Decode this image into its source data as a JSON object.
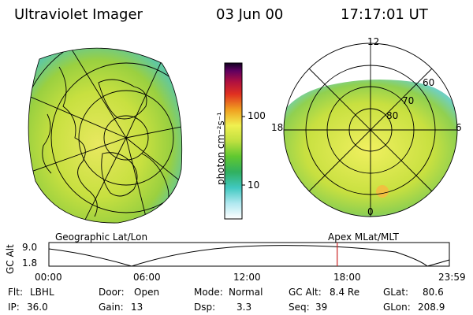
{
  "header": {
    "title": "Ultraviolet Imager",
    "date": "03 Jun 00",
    "time": "17:17:01 UT"
  },
  "colorbar": {
    "unit_label": "photon cm⁻²s⁻¹",
    "tick_100": "100",
    "tick_10": "10"
  },
  "maps": {
    "left_caption": "Geographic Lat/Lon",
    "right_caption": "Apex MLat/MLT",
    "polar_labels": {
      "top": "12",
      "left": "18",
      "right": "6",
      "bottom": "0",
      "lat60": "60",
      "lat70": "70",
      "lat80": "80"
    }
  },
  "altitude_plot": {
    "ylabel": "GC Alt",
    "yticks": [
      "9.0",
      "1.8"
    ],
    "xticks": [
      "00:00",
      "06:00",
      "12:00",
      "18:00",
      "23:59"
    ],
    "marker_time_hours": 17.28
  },
  "footer": {
    "flt_label": "Flt:",
    "flt_value": "LBHL",
    "ip_label": "IP:",
    "ip_value": "36.0",
    "door_label": "Door:",
    "door_value": "Open",
    "gain_label": "Gain:",
    "gain_value": "13",
    "mode_label": "Mode:",
    "mode_value": "Normal",
    "dsp_label": "Dsp:",
    "dsp_value": "3.3",
    "gcalt_label": "GC Alt:",
    "gcalt_value": "8.4 Re",
    "seq_label": "Seq:",
    "seq_value": "39",
    "glat_label": "GLat:",
    "glat_value": "80.6",
    "glon_label": "GLon:",
    "glon_value": "208.9"
  },
  "colors": {
    "aurora_green": "#9acd32",
    "aurora_yellow": "#f0f050",
    "marker_red": "#cc2222"
  }
}
